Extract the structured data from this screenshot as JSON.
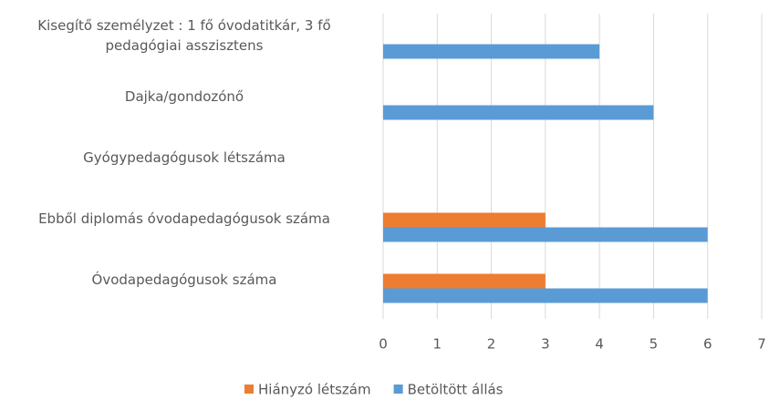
{
  "chart_data": {
    "type": "bar",
    "orientation": "horizontal",
    "categories": [
      "Kisegítő személyzet : 1 fő óvodatitkár, 3 fő pedagógiai asszisztens",
      "Dajka/gondozónő",
      "Gyógypedagógusok létszáma",
      "Ebből diplomás óvodapedagógusok száma",
      "Óvodapedagógusok száma"
    ],
    "series": [
      {
        "name": "Hiányzó létszám",
        "color": "#ed7d31",
        "values": [
          0,
          0,
          0,
          3,
          3
        ]
      },
      {
        "name": "Betöltött állás",
        "color": "#5b9bd5",
        "values": [
          4,
          5,
          0,
          6,
          6
        ]
      }
    ],
    "xlim": [
      0,
      7
    ],
    "xticks": [
      0,
      1,
      2,
      3,
      4,
      5,
      6,
      7
    ],
    "grid": true,
    "legend": "bottom"
  }
}
